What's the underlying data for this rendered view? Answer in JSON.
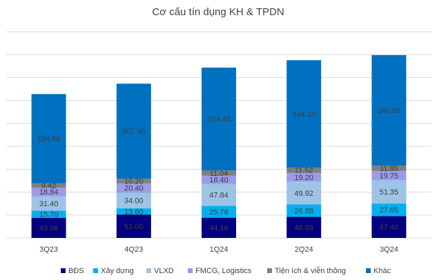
{
  "chart_data": {
    "type": "stacked_bar",
    "title": "Cơ cấu tín dụng KH & TPDN",
    "categories": [
      "3Q23",
      "4Q23",
      "1Q24",
      "2Q24",
      "3Q24"
    ],
    "series": [
      {
        "name": "BĐS",
        "color": "#000080",
        "values": [
          43.96,
          51.0,
          44.16,
          46.08,
          47.4
        ],
        "value_labels": [
          "43.96",
          "51.00",
          "44.16",
          "46.08",
          "47.40"
        ]
      },
      {
        "name": "Xây dựng",
        "color": "#00b0f0",
        "values": [
          15.7,
          13.6,
          25.76,
          26.88,
          27.65
        ],
        "value_labels": [
          "15.70",
          "13.60",
          "25.76",
          "26.88",
          "27.65"
        ]
      },
      {
        "name": "VLXD",
        "color": "#9dc3e6",
        "values": [
          31.4,
          34.0,
          47.84,
          49.92,
          51.35
        ],
        "value_labels": [
          "31.40",
          "34.00",
          "47.84",
          "49.92",
          "51.35"
        ]
      },
      {
        "name": "FMCG, Logistics",
        "color": "#9b9bea",
        "values": [
          18.84,
          20.4,
          18.4,
          19.2,
          19.75
        ],
        "value_labels": [
          "18.84",
          "20.40",
          "18.40",
          "19.20",
          "19.75"
        ]
      },
      {
        "name": "Tiện ích & viễn thông",
        "color": "#7f7f7f",
        "values": [
          9.42,
          10.2,
          11.04,
          11.52,
          11.85
        ],
        "value_labels": [
          "9.42",
          "10.20",
          "11.04",
          "11.52",
          "11.85"
        ]
      },
      {
        "name": "Khác",
        "color": "#0070c0",
        "values": [
          194.68,
          207.4,
          224.48,
          234.24,
          240.95
        ],
        "value_labels": [
          "194.68",
          "207.40",
          "224.48",
          "234.24",
          "240.95"
        ]
      }
    ],
    "ylim": [
      0,
      450
    ],
    "yticks": [
      0,
      50,
      100,
      150,
      200,
      250,
      300,
      350,
      400,
      450
    ],
    "grid": true,
    "legend": "bottom"
  }
}
